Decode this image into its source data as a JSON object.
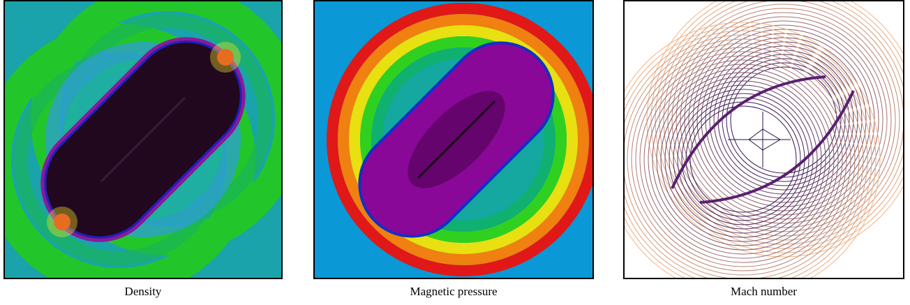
{
  "panels": [
    {
      "caption": "Density"
    },
    {
      "caption": "Magnetic pressure"
    },
    {
      "caption": "Mach number"
    }
  ]
}
